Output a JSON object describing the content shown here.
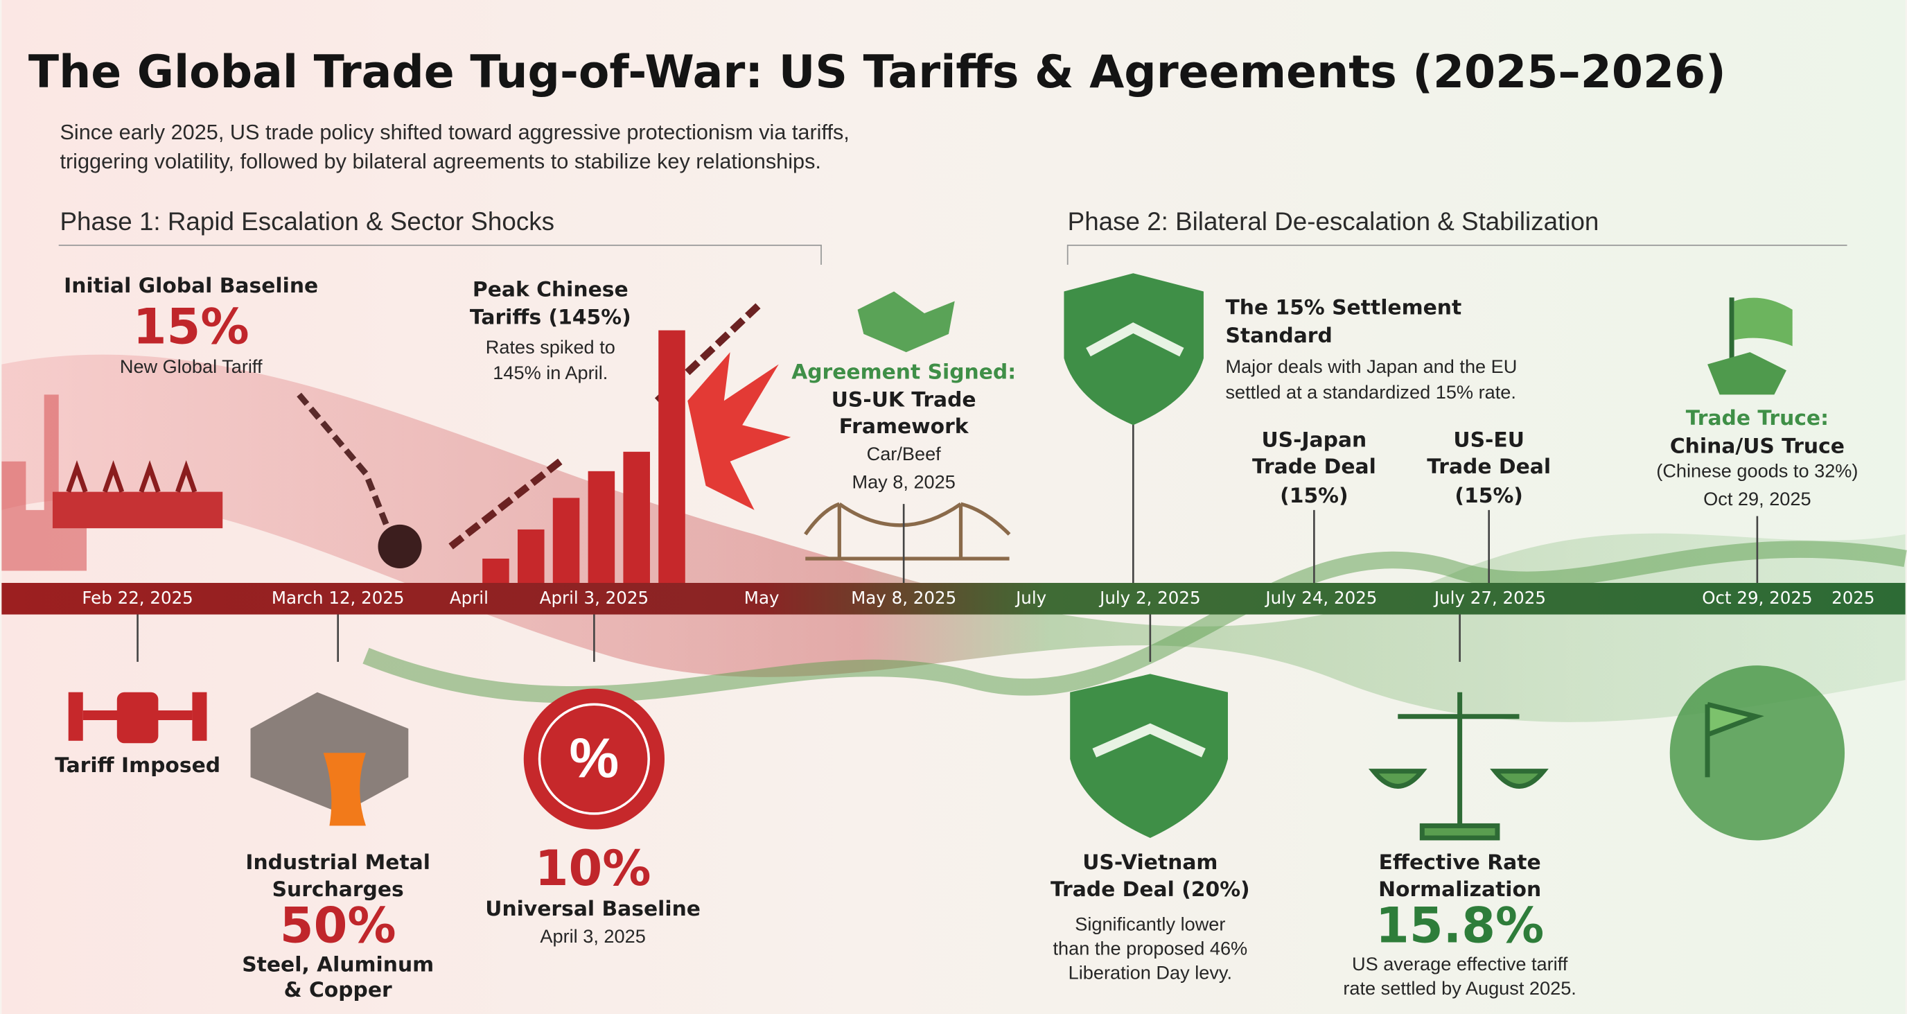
{
  "header": {
    "title": "The Global Trade Tug-of-War: US Tariffs & Agreements (2025–2026)",
    "subtitle": [
      "Since early 2025, US trade policy shifted toward aggressive protectionism via tariffs,",
      "triggering volatility, followed by bilateral agreements to stabilize key relationships."
    ]
  },
  "phases": [
    "Phase 1: Rapid Escalation & Sector Shocks",
    "Phase 2: Bilateral De-escalation & Stabilization"
  ],
  "timeline": [
    "Feb 22, 2025",
    "March 12, 2025",
    "April",
    "April 3, 2025",
    "May",
    "May 8, 2025",
    "July",
    "July 2, 2025",
    "July 24, 2025",
    "July 27, 2025",
    "Oct 29, 2025",
    "2025"
  ],
  "callouts": [
    {
      "lines": [
        "Initial Global Baseline",
        "15%",
        "New Global Tariff"
      ]
    },
    {
      "lines": [
        "Peak Chinese",
        "Tariffs (145%)",
        "Rates spiked to",
        "145% in April."
      ]
    },
    {
      "lines": [
        "Agreement Signed:",
        "US-UK Trade",
        "Framework",
        "Car/Beef",
        "May 8, 2025"
      ]
    },
    {
      "lines": [
        "The 15% Settlement",
        "Standard",
        "Major deals with Japan and the EU",
        "settled at a standardized 15% rate."
      ]
    },
    {
      "lines": [
        "US-Japan",
        "Trade Deal",
        "(15%)"
      ]
    },
    {
      "lines": [
        "US-EU",
        "Trade Deal",
        "(15%)"
      ]
    },
    {
      "lines": [
        "Trade Truce:",
        "China/US Truce",
        "(Chinese goods to 32%)",
        "Oct 29, 2025"
      ]
    },
    {
      "lines": [
        "Tariff Imposed"
      ]
    },
    {
      "lines": [
        "Industrial Metal",
        "Surcharges",
        "50%",
        "Steel, Aluminum",
        "& Copper"
      ]
    },
    {
      "lines": [
        "10%",
        "Universal Baseline",
        "April 3, 2025"
      ]
    },
    {
      "lines": [
        "US-Vietnam",
        "Trade Deal (20%)",
        "Significantly lower",
        "than the proposed 46%",
        "Liberation Day levy."
      ]
    },
    {
      "lines": [
        "Effective Rate",
        "Normalization",
        "15.8%",
        "US average effective tariff",
        "rate settled by August 2025."
      ]
    }
  ]
}
